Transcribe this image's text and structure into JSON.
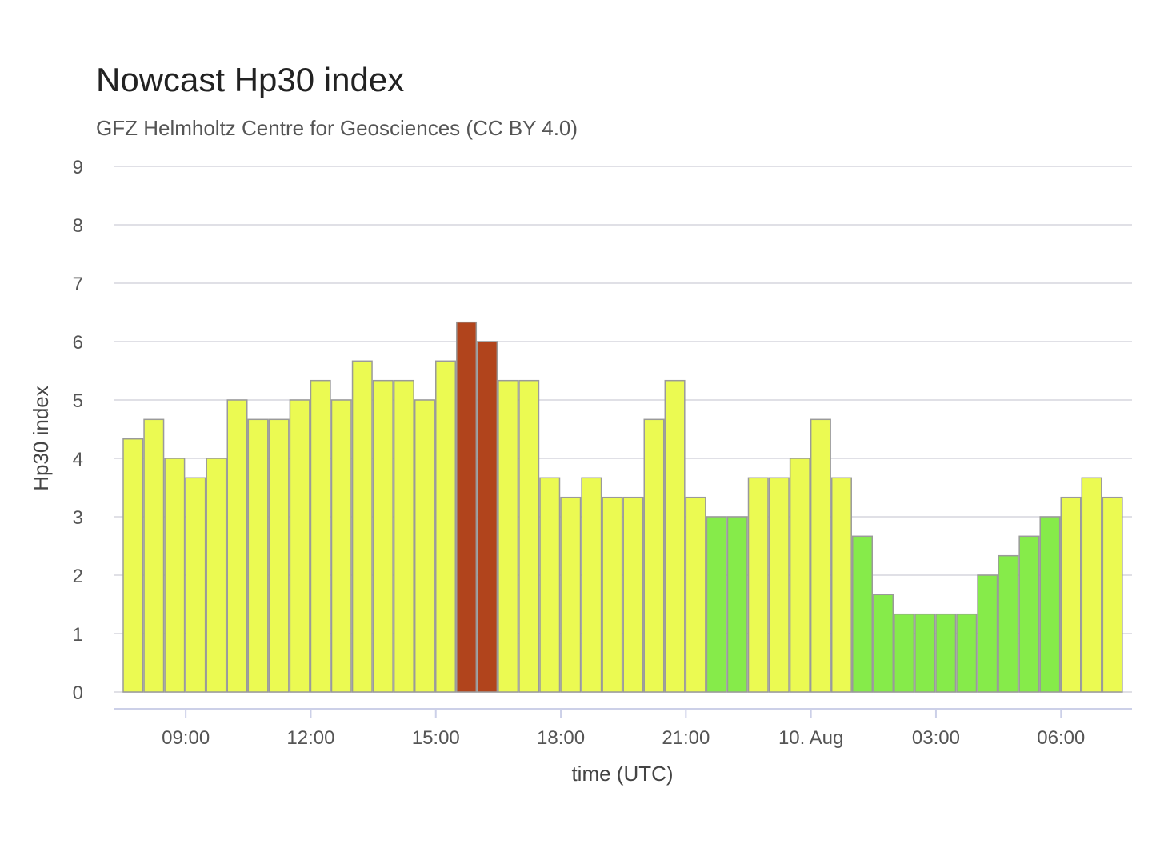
{
  "chart_data": {
    "type": "bar",
    "title": "Nowcast Hp30 index",
    "subtitle": "GFZ Helmholtz Centre for Geosciences (CC BY 4.0)",
    "xlabel": "time (UTC)",
    "ylabel": "Hp30 index",
    "ylim": [
      0,
      9
    ],
    "yticks": [
      "0",
      "1",
      "2",
      "3",
      "4",
      "5",
      "6",
      "7",
      "8",
      "9"
    ],
    "grid": true,
    "legend": "none",
    "x_start": "2025-08-09T07:30",
    "interval_minutes": 30,
    "xticks": [
      {
        "at": "2025-08-09T09:00",
        "label": "09:00"
      },
      {
        "at": "2025-08-09T12:00",
        "label": "12:00"
      },
      {
        "at": "2025-08-09T15:00",
        "label": "15:00"
      },
      {
        "at": "2025-08-09T18:00",
        "label": "18:00"
      },
      {
        "at": "2025-08-09T21:00",
        "label": "21:00"
      },
      {
        "at": "2025-08-10T00:00",
        "label": "10. Aug"
      },
      {
        "at": "2025-08-10T03:00",
        "label": "03:00"
      },
      {
        "at": "2025-08-10T06:00",
        "label": "06:00"
      }
    ],
    "values": [
      4.333,
      4.667,
      4.0,
      3.667,
      4.0,
      5.0,
      4.667,
      4.667,
      5.0,
      5.333,
      5.0,
      5.667,
      5.333,
      5.333,
      5.0,
      5.667,
      6.333,
      6.0,
      5.333,
      5.333,
      3.667,
      3.333,
      3.667,
      3.333,
      3.333,
      4.667,
      5.333,
      3.333,
      3.0,
      3.0,
      3.667,
      3.667,
      4.0,
      4.667,
      3.667,
      2.667,
      1.667,
      1.333,
      1.333,
      1.333,
      1.333,
      2.0,
      2.333,
      2.667,
      3.0,
      3.333,
      3.667,
      3.333
    ],
    "colors": {
      "green": "#86eb4a",
      "yellow": "#ebfa52",
      "red": "#b1441c",
      "bar_border": "#9a9a9a",
      "grid": "#e0e0e6",
      "x_axis": "#ccd0e8"
    },
    "color_thresholds": {
      "green_below": 3.1,
      "red_at_or_above": 6.0
    }
  }
}
